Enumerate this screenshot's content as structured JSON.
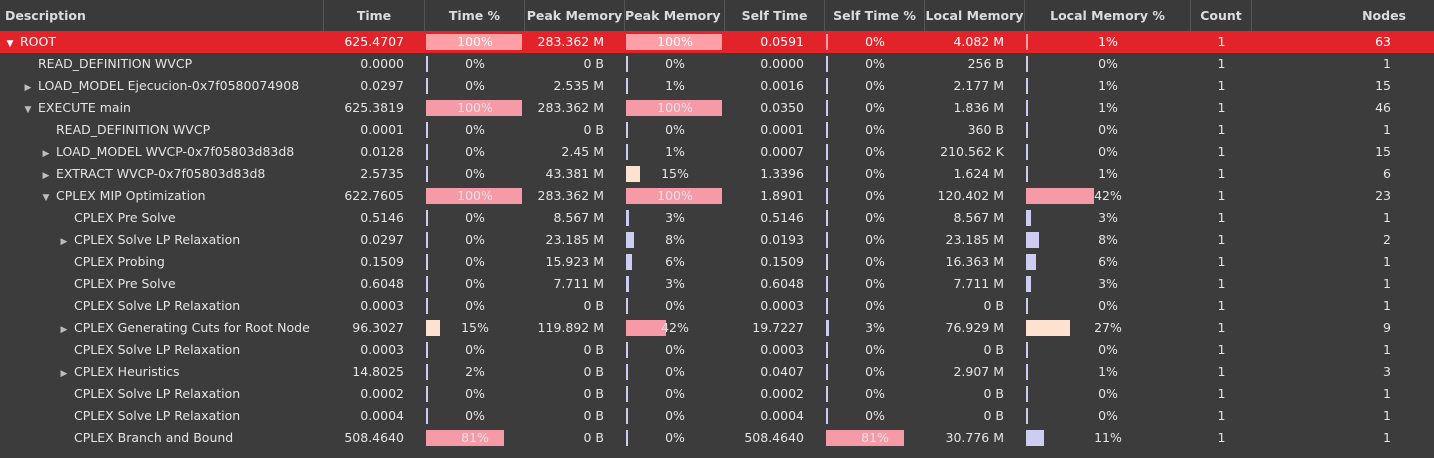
{
  "colors": {
    "selection": "#e3232a",
    "bar_high": "#f79aa8",
    "bar_mid": "#fce2cf",
    "bar_low": "#cccdf1",
    "bar_selected": "#ff9fa6"
  },
  "headers": {
    "description": "Description",
    "time": "Time",
    "time_pct": "Time %",
    "peak_memory": "Peak Memory",
    "peak_memory_pct": "Peak Memory %",
    "self_time": "Self Time",
    "self_time_pct": "Self Time %",
    "local_memory": "Local Memory",
    "local_memory_pct": "Local Memory %",
    "count": "Count",
    "nodes": "Nodes"
  },
  "rows": [
    {
      "desc": "ROOT",
      "depth": 0,
      "expander": "expanded",
      "selected": true,
      "time": "625.4707",
      "time_pct": {
        "label": "100%",
        "value": 100
      },
      "peak": "283.362 M",
      "peak_pct": {
        "label": "100%",
        "value": 100
      },
      "self": "0.0591",
      "self_pct": {
        "label": "0%",
        "value": 0
      },
      "local": "4.082 M",
      "local_pct": {
        "label": "1%",
        "value": 1
      },
      "count": "1",
      "nodes": "63"
    },
    {
      "desc": "READ_DEFINITION WVCP",
      "depth": 1,
      "expander": "none",
      "selected": false,
      "time": "0.0000",
      "time_pct": {
        "label": "0%",
        "value": 0
      },
      "peak": "0 B",
      "peak_pct": {
        "label": "0%",
        "value": 0
      },
      "self": "0.0000",
      "self_pct": {
        "label": "0%",
        "value": 0
      },
      "local": "256 B",
      "local_pct": {
        "label": "0%",
        "value": 0
      },
      "count": "1",
      "nodes": "1"
    },
    {
      "desc": "LOAD_MODEL Ejecucion-0x7f0580074908",
      "depth": 1,
      "expander": "collapsed",
      "selected": false,
      "time": "0.0297",
      "time_pct": {
        "label": "0%",
        "value": 0
      },
      "peak": "2.535 M",
      "peak_pct": {
        "label": "1%",
        "value": 1
      },
      "self": "0.0016",
      "self_pct": {
        "label": "0%",
        "value": 0
      },
      "local": "2.177 M",
      "local_pct": {
        "label": "1%",
        "value": 1
      },
      "count": "1",
      "nodes": "15"
    },
    {
      "desc": "EXECUTE main",
      "depth": 1,
      "expander": "expanded",
      "selected": false,
      "time": "625.3819",
      "time_pct": {
        "label": "100%",
        "value": 100
      },
      "peak": "283.362 M",
      "peak_pct": {
        "label": "100%",
        "value": 100
      },
      "self": "0.0350",
      "self_pct": {
        "label": "0%",
        "value": 0
      },
      "local": "1.836 M",
      "local_pct": {
        "label": "1%",
        "value": 1
      },
      "count": "1",
      "nodes": "46"
    },
    {
      "desc": "READ_DEFINITION WVCP",
      "depth": 2,
      "expander": "none",
      "selected": false,
      "time": "0.0001",
      "time_pct": {
        "label": "0%",
        "value": 0
      },
      "peak": "0 B",
      "peak_pct": {
        "label": "0%",
        "value": 0
      },
      "self": "0.0001",
      "self_pct": {
        "label": "0%",
        "value": 0
      },
      "local": "360 B",
      "local_pct": {
        "label": "0%",
        "value": 0
      },
      "count": "1",
      "nodes": "1"
    },
    {
      "desc": "LOAD_MODEL WVCP-0x7f05803d83d8",
      "depth": 2,
      "expander": "collapsed",
      "selected": false,
      "time": "0.0128",
      "time_pct": {
        "label": "0%",
        "value": 0
      },
      "peak": "2.45 M",
      "peak_pct": {
        "label": "1%",
        "value": 1
      },
      "self": "0.0007",
      "self_pct": {
        "label": "0%",
        "value": 0
      },
      "local": "210.562 K",
      "local_pct": {
        "label": "0%",
        "value": 0
      },
      "count": "1",
      "nodes": "15"
    },
    {
      "desc": "EXTRACT WVCP-0x7f05803d83d8",
      "depth": 2,
      "expander": "collapsed",
      "selected": false,
      "time": "2.5735",
      "time_pct": {
        "label": "0%",
        "value": 0
      },
      "peak": "43.381 M",
      "peak_pct": {
        "label": "15%",
        "value": 15
      },
      "self": "1.3396",
      "self_pct": {
        "label": "0%",
        "value": 0
      },
      "local": "1.624 M",
      "local_pct": {
        "label": "1%",
        "value": 1
      },
      "count": "1",
      "nodes": "6"
    },
    {
      "desc": "CPLEX MIP Optimization",
      "depth": 2,
      "expander": "expanded",
      "selected": false,
      "time": "622.7605",
      "time_pct": {
        "label": "100%",
        "value": 100
      },
      "peak": "283.362 M",
      "peak_pct": {
        "label": "100%",
        "value": 100
      },
      "self": "1.8901",
      "self_pct": {
        "label": "0%",
        "value": 0
      },
      "local": "120.402 M",
      "local_pct": {
        "label": "42%",
        "value": 42
      },
      "count": "1",
      "nodes": "23"
    },
    {
      "desc": "CPLEX Pre Solve",
      "depth": 3,
      "expander": "none",
      "selected": false,
      "time": "0.5146",
      "time_pct": {
        "label": "0%",
        "value": 0
      },
      "peak": "8.567 M",
      "peak_pct": {
        "label": "3%",
        "value": 3
      },
      "self": "0.5146",
      "self_pct": {
        "label": "0%",
        "value": 0
      },
      "local": "8.567 M",
      "local_pct": {
        "label": "3%",
        "value": 3
      },
      "count": "1",
      "nodes": "1"
    },
    {
      "desc": "CPLEX Solve LP Relaxation",
      "depth": 3,
      "expander": "collapsed",
      "selected": false,
      "time": "0.0297",
      "time_pct": {
        "label": "0%",
        "value": 0
      },
      "peak": "23.185 M",
      "peak_pct": {
        "label": "8%",
        "value": 8
      },
      "self": "0.0193",
      "self_pct": {
        "label": "0%",
        "value": 0
      },
      "local": "23.185 M",
      "local_pct": {
        "label": "8%",
        "value": 8
      },
      "count": "1",
      "nodes": "2"
    },
    {
      "desc": "CPLEX Probing",
      "depth": 3,
      "expander": "none",
      "selected": false,
      "time": "0.1509",
      "time_pct": {
        "label": "0%",
        "value": 0
      },
      "peak": "15.923 M",
      "peak_pct": {
        "label": "6%",
        "value": 6
      },
      "self": "0.1509",
      "self_pct": {
        "label": "0%",
        "value": 0
      },
      "local": "16.363 M",
      "local_pct": {
        "label": "6%",
        "value": 6
      },
      "count": "1",
      "nodes": "1"
    },
    {
      "desc": "CPLEX Pre Solve",
      "depth": 3,
      "expander": "none",
      "selected": false,
      "time": "0.6048",
      "time_pct": {
        "label": "0%",
        "value": 0
      },
      "peak": "7.711 M",
      "peak_pct": {
        "label": "3%",
        "value": 3
      },
      "self": "0.6048",
      "self_pct": {
        "label": "0%",
        "value": 0
      },
      "local": "7.711 M",
      "local_pct": {
        "label": "3%",
        "value": 3
      },
      "count": "1",
      "nodes": "1"
    },
    {
      "desc": "CPLEX Solve LP Relaxation",
      "depth": 3,
      "expander": "none",
      "selected": false,
      "time": "0.0003",
      "time_pct": {
        "label": "0%",
        "value": 0
      },
      "peak": "0 B",
      "peak_pct": {
        "label": "0%",
        "value": 0
      },
      "self": "0.0003",
      "self_pct": {
        "label": "0%",
        "value": 0
      },
      "local": "0 B",
      "local_pct": {
        "label": "0%",
        "value": 0
      },
      "count": "1",
      "nodes": "1"
    },
    {
      "desc": "CPLEX Generating Cuts for Root Node",
      "depth": 3,
      "expander": "collapsed",
      "selected": false,
      "time": "96.3027",
      "time_pct": {
        "label": "15%",
        "value": 15
      },
      "peak": "119.892 M",
      "peak_pct": {
        "label": "42%",
        "value": 42
      },
      "self": "19.7227",
      "self_pct": {
        "label": "3%",
        "value": 3
      },
      "local": "76.929 M",
      "local_pct": {
        "label": "27%",
        "value": 27
      },
      "count": "1",
      "nodes": "9"
    },
    {
      "desc": "CPLEX Solve LP Relaxation",
      "depth": 3,
      "expander": "none",
      "selected": false,
      "time": "0.0003",
      "time_pct": {
        "label": "0%",
        "value": 0
      },
      "peak": "0 B",
      "peak_pct": {
        "label": "0%",
        "value": 0
      },
      "self": "0.0003",
      "self_pct": {
        "label": "0%",
        "value": 0
      },
      "local": "0 B",
      "local_pct": {
        "label": "0%",
        "value": 0
      },
      "count": "1",
      "nodes": "1"
    },
    {
      "desc": "CPLEX Heuristics",
      "depth": 3,
      "expander": "collapsed",
      "selected": false,
      "time": "14.8025",
      "time_pct": {
        "label": "2%",
        "value": 2
      },
      "peak": "0 B",
      "peak_pct": {
        "label": "0%",
        "value": 0
      },
      "self": "0.0407",
      "self_pct": {
        "label": "0%",
        "value": 0
      },
      "local": "2.907 M",
      "local_pct": {
        "label": "1%",
        "value": 1
      },
      "count": "1",
      "nodes": "3"
    },
    {
      "desc": "CPLEX Solve LP Relaxation",
      "depth": 3,
      "expander": "none",
      "selected": false,
      "time": "0.0002",
      "time_pct": {
        "label": "0%",
        "value": 0
      },
      "peak": "0 B",
      "peak_pct": {
        "label": "0%",
        "value": 0
      },
      "self": "0.0002",
      "self_pct": {
        "label": "0%",
        "value": 0
      },
      "local": "0 B",
      "local_pct": {
        "label": "0%",
        "value": 0
      },
      "count": "1",
      "nodes": "1"
    },
    {
      "desc": "CPLEX Solve LP Relaxation",
      "depth": 3,
      "expander": "none",
      "selected": false,
      "time": "0.0004",
      "time_pct": {
        "label": "0%",
        "value": 0
      },
      "peak": "0 B",
      "peak_pct": {
        "label": "0%",
        "value": 0
      },
      "self": "0.0004",
      "self_pct": {
        "label": "0%",
        "value": 0
      },
      "local": "0 B",
      "local_pct": {
        "label": "0%",
        "value": 0
      },
      "count": "1",
      "nodes": "1"
    },
    {
      "desc": "CPLEX Branch and Bound",
      "depth": 3,
      "expander": "none",
      "selected": false,
      "time": "508.4640",
      "time_pct": {
        "label": "81%",
        "value": 81
      },
      "peak": "0 B",
      "peak_pct": {
        "label": "0%",
        "value": 0
      },
      "self": "508.4640",
      "self_pct": {
        "label": "81%",
        "value": 81
      },
      "local": "30.776 M",
      "local_pct": {
        "label": "11%",
        "value": 11
      },
      "count": "1",
      "nodes": "1"
    }
  ]
}
